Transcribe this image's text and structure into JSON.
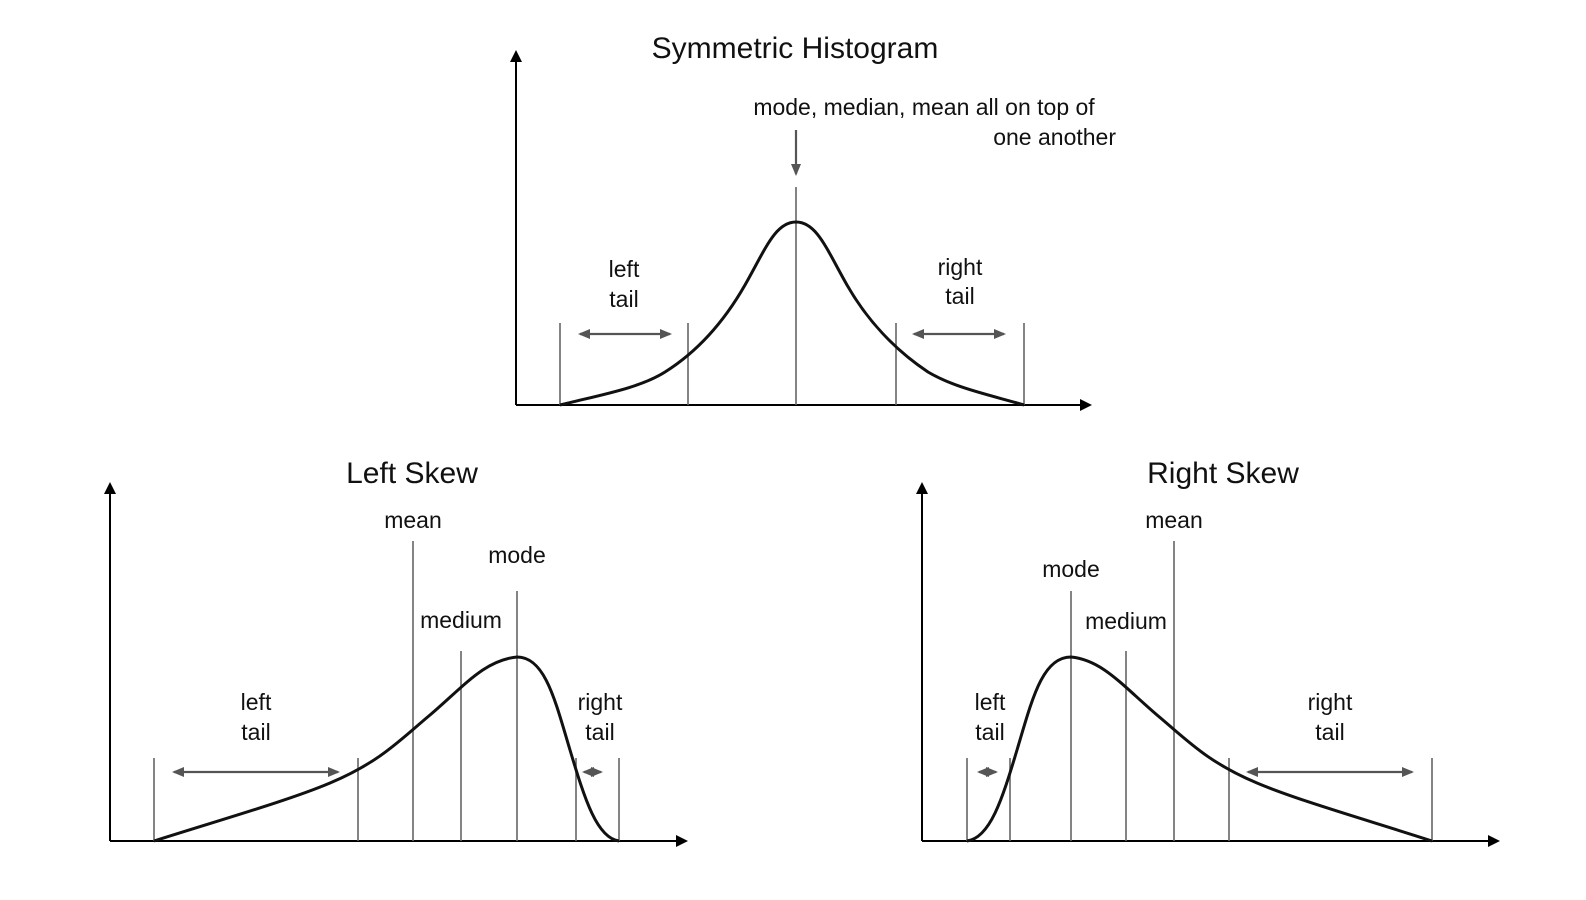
{
  "diagrams": {
    "symmetric": {
      "title": "Symmetric Histogram",
      "center_note_line1": "mode, median, mean all on top of",
      "center_note_line2": "one another",
      "left_tail_line1": "left",
      "left_tail_line2": "tail",
      "right_tail_line1": "right",
      "right_tail_line2": "tail"
    },
    "left_skew": {
      "title": "Left Skew",
      "mean_label": "mean",
      "mode_label": "mode",
      "median_label": "medium",
      "left_tail_line1": "left",
      "left_tail_line2": "tail",
      "right_tail_line1": "right",
      "right_tail_line2": "tail"
    },
    "right_skew": {
      "title": "Right Skew",
      "mean_label": "mean",
      "mode_label": "mode",
      "median_label": "medium",
      "left_tail_line1": "left",
      "left_tail_line2": "tail",
      "right_tail_line1": "right",
      "right_tail_line2": "tail"
    }
  },
  "colors": {
    "curve": "#111111",
    "guide_lines": "#666666",
    "arrows": "#555555",
    "background": "#ffffff"
  }
}
